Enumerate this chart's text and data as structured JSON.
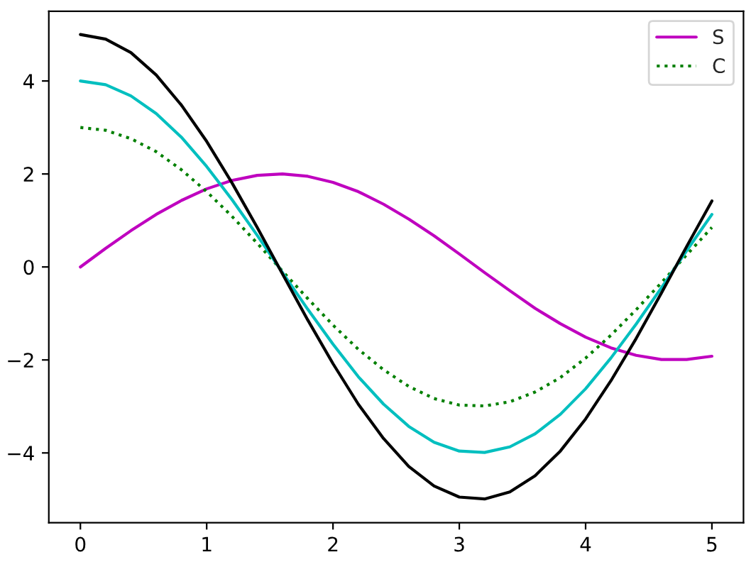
{
  "chart_data": {
    "type": "line",
    "x": [
      0,
      0.2,
      0.4,
      0.6,
      0.8,
      1.0,
      1.2,
      1.4,
      1.6,
      1.8,
      2.0,
      2.2,
      2.4,
      2.6,
      2.8,
      3.0,
      3.2,
      3.4,
      3.6,
      3.8,
      4.0,
      4.2,
      4.4,
      4.6,
      4.8,
      5.0
    ],
    "series": [
      {
        "name": "S",
        "color": "#bf00bf",
        "line_style": "solid",
        "values": [
          0,
          0.4,
          0.78,
          1.13,
          1.43,
          1.68,
          1.86,
          1.97,
          2.0,
          1.95,
          1.82,
          1.62,
          1.35,
          1.03,
          0.67,
          0.28,
          -0.12,
          -0.51,
          -0.89,
          -1.22,
          -1.51,
          -1.74,
          -1.9,
          -1.99,
          -1.99,
          -1.92
        ]
      },
      {
        "name": "C",
        "color": "#008000",
        "line_style": "dotted",
        "values": [
          3,
          2.94,
          2.76,
          2.48,
          2.09,
          1.62,
          1.09,
          0.51,
          -0.09,
          -0.68,
          -1.25,
          -1.77,
          -2.21,
          -2.57,
          -2.83,
          -2.97,
          -2.99,
          -2.9,
          -2.69,
          -2.38,
          -1.96,
          -1.47,
          -0.92,
          -0.34,
          0.26,
          0.85
        ]
      },
      {
        "color": "#00bfbf",
        "line_style": "solid",
        "values": [
          4,
          3.92,
          3.68,
          3.3,
          2.79,
          2.16,
          1.45,
          0.68,
          -0.12,
          -0.91,
          -1.66,
          -2.36,
          -2.95,
          -3.43,
          -3.77,
          -3.96,
          -3.99,
          -3.87,
          -3.59,
          -3.17,
          -2.62,
          -1.96,
          -1.23,
          -0.45,
          0.35,
          1.13
        ]
      },
      {
        "color": "#000000",
        "line_style": "solid",
        "values": [
          5,
          4.9,
          4.61,
          4.13,
          3.48,
          2.7,
          1.81,
          0.85,
          -0.15,
          -1.14,
          -2.08,
          -2.95,
          -3.69,
          -4.29,
          -4.71,
          -4.95,
          -4.99,
          -4.84,
          -4.49,
          -3.96,
          -3.27,
          -2.45,
          -1.54,
          -0.56,
          0.44,
          1.42
        ]
      }
    ],
    "xlim": [
      -0.25,
      5.25
    ],
    "xticks": [
      0,
      1,
      2,
      3,
      4,
      5
    ],
    "ylim": [
      -5.5,
      5.5
    ],
    "yticks": [
      {
        "value": -4,
        "label": "−4"
      },
      {
        "value": -2,
        "label": "−2"
      },
      0,
      2,
      4
    ],
    "grid": false,
    "legend": "top right",
    "marker": "none"
  }
}
